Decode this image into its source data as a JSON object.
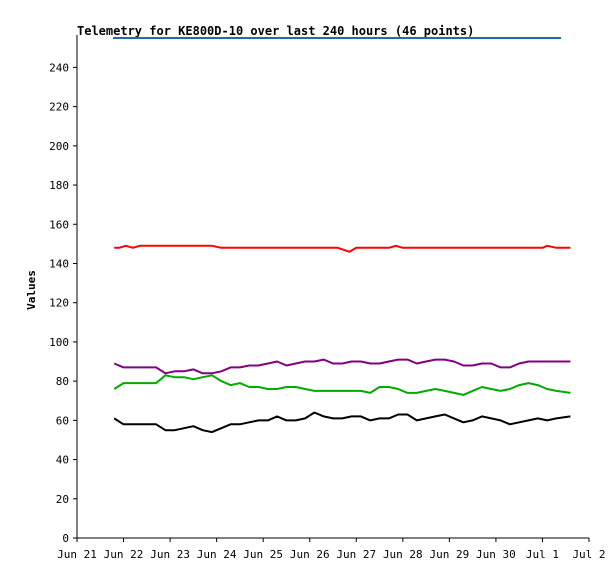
{
  "chart_data": {
    "type": "line",
    "title": "Telemetry for KE800D-10 over last 240 hours (46 points)",
    "xlabel": "",
    "ylabel": "Values",
    "ylim": [
      0,
      255
    ],
    "yticks": [
      0,
      20,
      40,
      60,
      80,
      100,
      120,
      140,
      160,
      180,
      200,
      220,
      240
    ],
    "xticks": [
      "Jun 21",
      "Jun 22",
      "Jun 23",
      "Jun 24",
      "Jun 25",
      "Jun 26",
      "Jun 27",
      "Jun 28",
      "Jun 29",
      "Jun 30",
      "Jul 1",
      "Jul 2"
    ],
    "xlim_days": [
      0,
      11
    ],
    "grid": false,
    "legend": "none",
    "series": [
      {
        "color": "#ff0000",
        "x": [
          0.8,
          0.9,
          1.05,
          1.2,
          1.35,
          1.5,
          1.7,
          2.0,
          2.3,
          2.6,
          2.9,
          3.1,
          3.3,
          3.6,
          4.0,
          4.4,
          4.8,
          5.2,
          5.6,
          5.85,
          6.0,
          6.3,
          6.7,
          6.85,
          7.0,
          7.4,
          7.8,
          8.2,
          8.6,
          9.0,
          9.4,
          9.8,
          10.0,
          10.1,
          10.3,
          10.6
        ],
        "y": [
          148,
          148,
          149,
          148,
          149,
          149,
          149,
          149,
          149,
          149,
          149,
          148,
          148,
          148,
          148,
          148,
          148,
          148,
          148,
          146,
          148,
          148,
          148,
          149,
          148,
          148,
          148,
          148,
          148,
          148,
          148,
          148,
          148,
          149,
          148,
          148
        ]
      },
      {
        "color": "#800080",
        "x": [
          0.8,
          1.0,
          1.2,
          1.5,
          1.7,
          1.9,
          2.1,
          2.3,
          2.5,
          2.7,
          2.9,
          3.1,
          3.3,
          3.5,
          3.7,
          3.9,
          4.1,
          4.3,
          4.5,
          4.7,
          4.9,
          5.1,
          5.3,
          5.5,
          5.7,
          5.9,
          6.1,
          6.3,
          6.5,
          6.7,
          6.9,
          7.1,
          7.3,
          7.5,
          7.7,
          7.9,
          8.1,
          8.3,
          8.5,
          8.7,
          8.9,
          9.1,
          9.3,
          9.5,
          9.7,
          9.9,
          10.1,
          10.3,
          10.6
        ],
        "y": [
          89,
          87,
          87,
          87,
          87,
          84,
          85,
          85,
          86,
          84,
          84,
          85,
          87,
          87,
          88,
          88,
          89,
          90,
          88,
          89,
          90,
          90,
          91,
          89,
          89,
          90,
          90,
          89,
          89,
          90,
          91,
          91,
          89,
          90,
          91,
          91,
          90,
          88,
          88,
          89,
          89,
          87,
          87,
          89,
          90,
          90,
          90,
          90,
          90
        ]
      },
      {
        "color": "#00aa00",
        "x": [
          0.8,
          1.0,
          1.2,
          1.5,
          1.7,
          1.9,
          2.1,
          2.3,
          2.5,
          2.7,
          2.9,
          3.1,
          3.3,
          3.5,
          3.7,
          3.9,
          4.1,
          4.3,
          4.5,
          4.7,
          4.9,
          5.1,
          5.3,
          5.5,
          5.7,
          5.9,
          6.1,
          6.3,
          6.5,
          6.7,
          6.9,
          7.1,
          7.3,
          7.5,
          7.7,
          7.9,
          8.1,
          8.3,
          8.5,
          8.7,
          8.9,
          9.1,
          9.3,
          9.5,
          9.7,
          9.9,
          10.1,
          10.3,
          10.6
        ],
        "y": [
          76,
          79,
          79,
          79,
          79,
          83,
          82,
          82,
          81,
          82,
          83,
          80,
          78,
          79,
          77,
          77,
          76,
          76,
          77,
          77,
          76,
          75,
          75,
          75,
          75,
          75,
          75,
          74,
          77,
          77,
          76,
          74,
          74,
          75,
          76,
          75,
          74,
          73,
          75,
          77,
          76,
          75,
          76,
          78,
          79,
          78,
          76,
          75,
          74
        ]
      },
      {
        "color": "#000000",
        "x": [
          0.8,
          1.0,
          1.2,
          1.5,
          1.7,
          1.9,
          2.1,
          2.3,
          2.5,
          2.7,
          2.9,
          3.1,
          3.3,
          3.5,
          3.7,
          3.9,
          4.1,
          4.3,
          4.5,
          4.7,
          4.9,
          5.1,
          5.3,
          5.5,
          5.7,
          5.9,
          6.1,
          6.3,
          6.5,
          6.7,
          6.9,
          7.1,
          7.3,
          7.5,
          7.7,
          7.9,
          8.1,
          8.3,
          8.5,
          8.7,
          8.9,
          9.1,
          9.3,
          9.5,
          9.7,
          9.9,
          10.1,
          10.3,
          10.6
        ],
        "y": [
          61,
          58,
          58,
          58,
          58,
          55,
          55,
          56,
          57,
          55,
          54,
          56,
          58,
          58,
          59,
          60,
          60,
          62,
          60,
          60,
          61,
          64,
          62,
          61,
          61,
          62,
          62,
          60,
          61,
          61,
          63,
          63,
          60,
          61,
          62,
          63,
          61,
          59,
          60,
          62,
          61,
          60,
          58,
          59,
          60,
          61,
          60,
          61,
          62
        ]
      }
    ],
    "top_line_color": "#1a6fa6"
  }
}
